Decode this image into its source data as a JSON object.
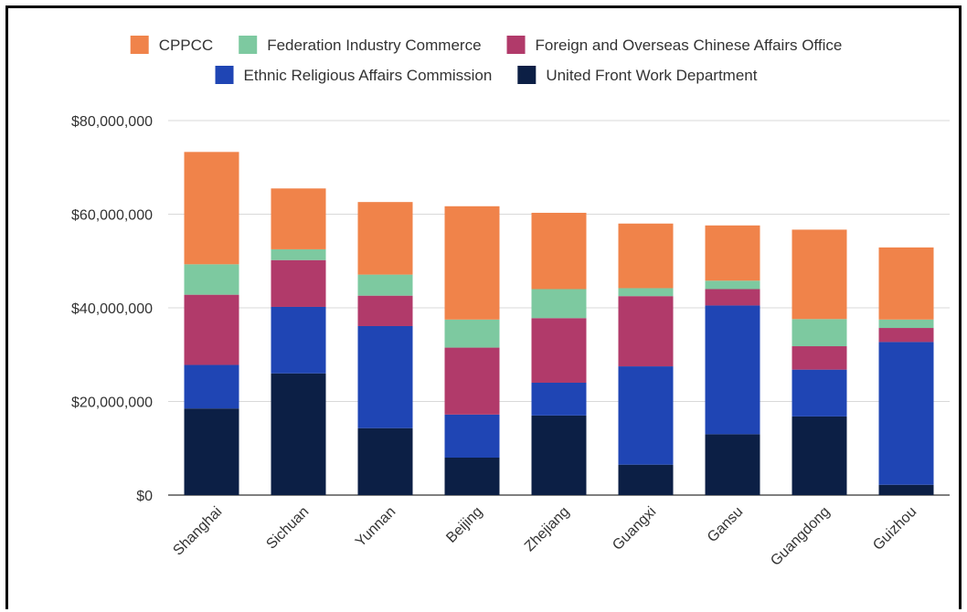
{
  "chart_data": {
    "type": "bar",
    "stacked": true,
    "categories": [
      "Shanghai",
      "Sichuan",
      "Yunnan",
      "Beijing",
      "Zhejiang",
      "Guangxi",
      "Gansu",
      "Guangdong",
      "Guizhou"
    ],
    "series": [
      {
        "name": "United Front Work Department",
        "color": "#0c1f45",
        "values": [
          18500000,
          26000000,
          14300000,
          8000000,
          17000000,
          6500000,
          13000000,
          16800000,
          2200000
        ]
      },
      {
        "name": "Ethnic Religious Affairs Commission",
        "color": "#1f45b4",
        "values": [
          9300000,
          14200000,
          21800000,
          9200000,
          7000000,
          21000000,
          27500000,
          10000000,
          30500000
        ]
      },
      {
        "name": "Foreign and Overseas Chinese Affairs Office",
        "color": "#b13a6a",
        "values": [
          15000000,
          10000000,
          6500000,
          14300000,
          13800000,
          15000000,
          3500000,
          5000000,
          3000000
        ]
      },
      {
        "name": "Federation Industry Commerce",
        "color": "#7dc9a0",
        "values": [
          6500000,
          2300000,
          4500000,
          6000000,
          6200000,
          1700000,
          1800000,
          5800000,
          1800000
        ]
      },
      {
        "name": "CPPCC",
        "color": "#f0834a",
        "values": [
          24000000,
          13000000,
          15500000,
          24200000,
          16300000,
          13800000,
          11800000,
          19100000,
          15400000
        ]
      }
    ],
    "legend_order": [
      "CPPCC",
      "Federation Industry Commerce",
      "Foreign and Overseas Chinese Affairs Office",
      "Ethnic Religious Affairs Commission",
      "United Front Work Department"
    ],
    "yticks": [
      "$0",
      "$20,000,000",
      "$40,000,000",
      "$60,000,000",
      "$80,000,000"
    ],
    "ylim": [
      0,
      80000000
    ],
    "grid": true,
    "legend_position": "top",
    "title": "",
    "xlabel": "",
    "ylabel": ""
  }
}
